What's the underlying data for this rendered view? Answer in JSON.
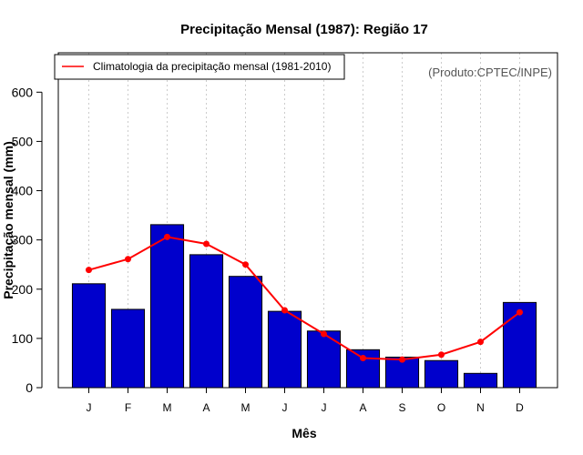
{
  "chart_data": {
    "type": "bar",
    "title": "Precipitação Mensal (1987): Região 17",
    "xlabel": "Mês",
    "ylabel": "Precipitação mensal (mm)",
    "categories": [
      "J",
      "F",
      "M",
      "A",
      "M",
      "J",
      "J",
      "A",
      "S",
      "O",
      "N",
      "D"
    ],
    "ylim": [
      0,
      680
    ],
    "yticks": [
      0,
      100,
      200,
      300,
      400,
      500,
      600
    ],
    "grid": "vertical dotted",
    "series": [
      {
        "name": "Precipitação mensal (1987)",
        "kind": "bar",
        "color": "#0000cc",
        "values": [
          211,
          159,
          331,
          270,
          226,
          155,
          115,
          77,
          62,
          55,
          29,
          173
        ]
      },
      {
        "name": "Climatologia da precipitação mensal (1981-2010)",
        "kind": "line",
        "color": "#ff0000",
        "values": [
          239,
          261,
          306,
          292,
          250,
          157,
          109,
          60,
          57,
          67,
          93,
          153
        ]
      }
    ],
    "legend": {
      "position": "top-left",
      "entries": [
        "Climatologia da precipitação mensal (1981-2010)"
      ]
    },
    "credit": "(Produto:CPTEC/INPE)"
  }
}
